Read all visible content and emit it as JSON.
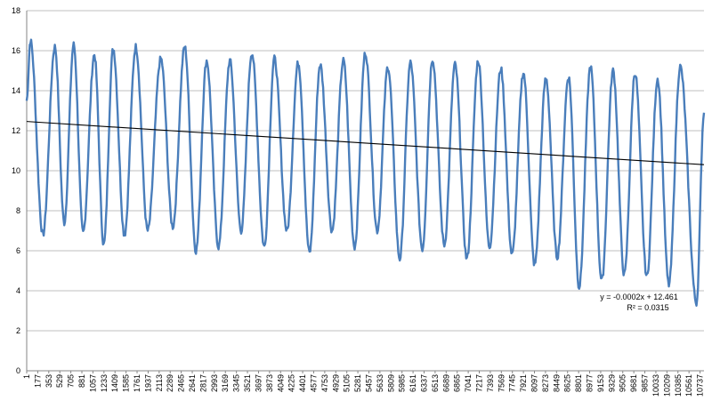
{
  "chart_data": {
    "type": "line",
    "title": "",
    "xlabel": "",
    "ylabel": "",
    "ylim": [
      0,
      18
    ],
    "xlim": [
      1,
      10800
    ],
    "grid": "horizontal",
    "yticks": [
      0,
      2,
      4,
      6,
      8,
      10,
      12,
      14,
      16,
      18
    ],
    "xticks": [
      "1",
      "177",
      "353",
      "529",
      "705",
      "881",
      "1057",
      "1233",
      "1409",
      "1585",
      "1761",
      "1937",
      "2113",
      "2289",
      "2465",
      "2641",
      "2817",
      "2993",
      "3169",
      "3345",
      "3521",
      "3697",
      "3873",
      "4049",
      "4225",
      "4401",
      "4577",
      "4753",
      "4929",
      "5105",
      "5281",
      "5457",
      "5633",
      "5809",
      "5985",
      "6161",
      "6337",
      "6513",
      "6689",
      "6865",
      "7041",
      "7217",
      "7393",
      "7569",
      "7745",
      "7921",
      "8097",
      "8273",
      "8449",
      "8625",
      "8801",
      "8977",
      "9153",
      "9329",
      "9505",
      "9681",
      "9857",
      "10033",
      "10209",
      "10385",
      "10561",
      "10737"
    ],
    "series": [
      {
        "color": "#4a7ebb",
        "peaks": [
          [
            60,
            16.5
          ],
          [
            450,
            16.2
          ],
          [
            750,
            16.3
          ],
          [
            1080,
            15.8
          ],
          [
            1380,
            16.1
          ],
          [
            1740,
            16.2
          ],
          [
            2140,
            15.6
          ],
          [
            2520,
            16.2
          ],
          [
            2870,
            15.5
          ],
          [
            3240,
            15.5
          ],
          [
            3590,
            15.9
          ],
          [
            3950,
            15.6
          ],
          [
            4330,
            15.4
          ],
          [
            4680,
            15.3
          ],
          [
            5050,
            15.5
          ],
          [
            5400,
            15.9
          ],
          [
            5760,
            15.2
          ],
          [
            6120,
            15.4
          ],
          [
            6470,
            15.6
          ],
          [
            6830,
            15.3
          ],
          [
            7200,
            15.5
          ],
          [
            7560,
            15.1
          ],
          [
            7920,
            14.9
          ],
          [
            8280,
            14.6
          ],
          [
            8640,
            14.7
          ],
          [
            8990,
            15.2
          ],
          [
            9350,
            15.0
          ],
          [
            9700,
            14.9
          ],
          [
            10060,
            14.6
          ],
          [
            10420,
            15.2
          ]
        ],
        "troughs": [
          [
            0,
            13.5
          ],
          [
            260,
            6.8
          ],
          [
            600,
            7.4
          ],
          [
            900,
            6.9
          ],
          [
            1230,
            6.3
          ],
          [
            1560,
            6.8
          ],
          [
            1930,
            7.0
          ],
          [
            2330,
            7.2
          ],
          [
            2700,
            6.0
          ],
          [
            3060,
            6.2
          ],
          [
            3420,
            7.0
          ],
          [
            3790,
            6.2
          ],
          [
            4150,
            7.0
          ],
          [
            4510,
            5.9
          ],
          [
            4870,
            7.0
          ],
          [
            5230,
            6.2
          ],
          [
            5590,
            7.0
          ],
          [
            5950,
            5.6
          ],
          [
            6310,
            6.1
          ],
          [
            6660,
            6.3
          ],
          [
            7020,
            5.6
          ],
          [
            7380,
            6.2
          ],
          [
            7740,
            5.8
          ],
          [
            8100,
            5.3
          ],
          [
            8460,
            5.7
          ],
          [
            8810,
            4.2
          ],
          [
            9170,
            4.5
          ],
          [
            9530,
            4.8
          ],
          [
            9890,
            4.7
          ],
          [
            10240,
            4.3
          ],
          [
            10680,
            3.4
          ],
          [
            10800,
            12.9
          ]
        ]
      }
    ],
    "trendline": {
      "slope": -0.0002,
      "intercept": 12.461,
      "color": "#000000",
      "equation": "y = -0.0002x + 12.461",
      "r_squared": "R² = 0.0315"
    }
  }
}
